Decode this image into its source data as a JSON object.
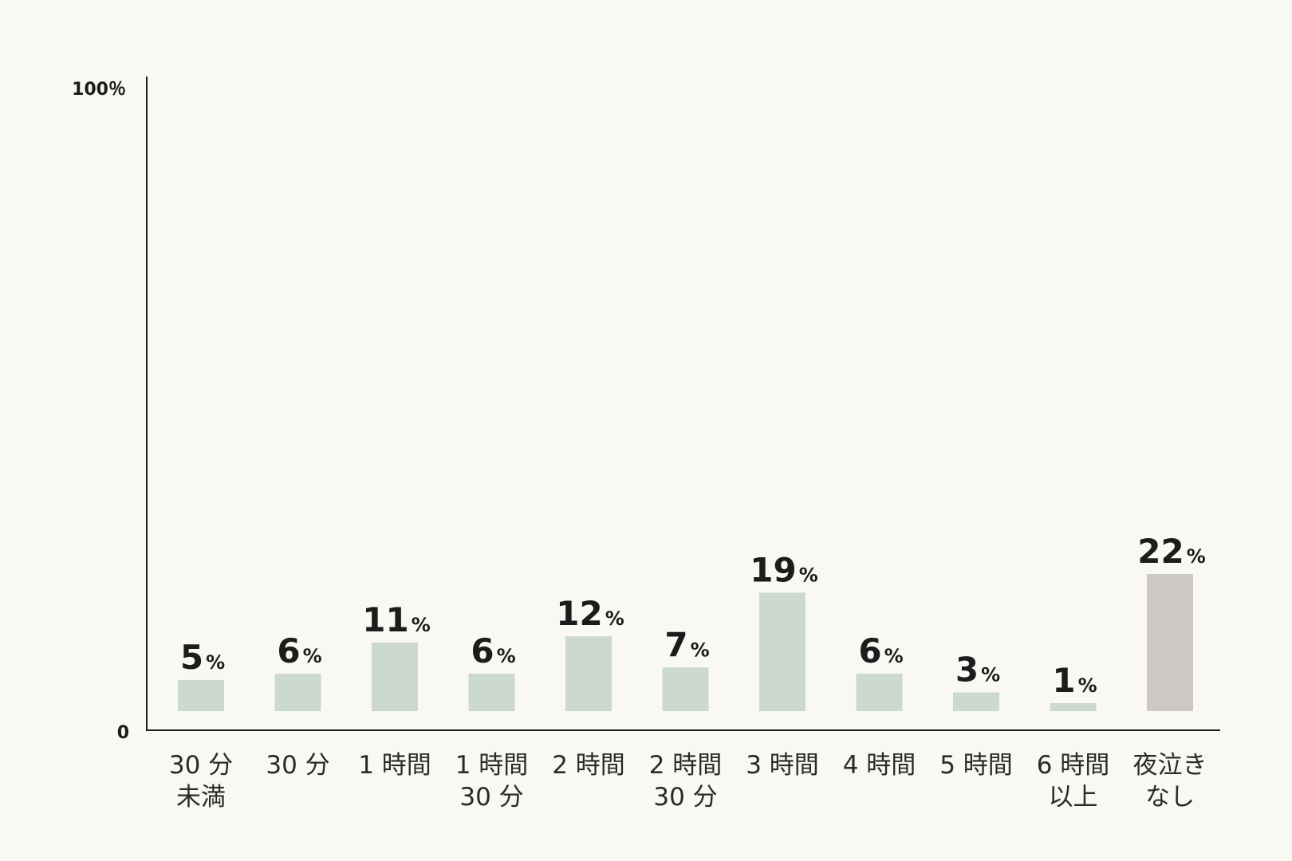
{
  "chart_data": {
    "type": "bar",
    "categories": [
      [
        "30 分",
        "未満"
      ],
      [
        "30 分"
      ],
      [
        "1 時間"
      ],
      [
        "1 時間",
        "30 分"
      ],
      [
        "2 時間"
      ],
      [
        "2 時間",
        "30 分"
      ],
      [
        "3 時間"
      ],
      [
        "4 時間"
      ],
      [
        "5 時間"
      ],
      [
        "6 時間",
        "以上"
      ],
      [
        "夜泣き",
        "なし"
      ]
    ],
    "values": [
      5,
      6,
      11,
      6,
      12,
      7,
      19,
      6,
      3,
      1,
      22
    ],
    "value_labels": [
      "5",
      "6",
      "11",
      "6",
      "12",
      "7",
      "19",
      "6",
      "3",
      "1",
      "22"
    ],
    "value_unit": "%",
    "ylim": [
      0,
      100
    ],
    "y_tick_labels": {
      "min": "0",
      "max": "100％"
    },
    "title": "",
    "xlabel": "",
    "ylabel": "",
    "grid": false,
    "legend": "none",
    "colors": {
      "default_bar": "#cbd9d0",
      "highlight_bar": "#cbc8c5",
      "axis": "#1c1c1c",
      "text": "#1c1c1c",
      "background": "#faf8f3"
    },
    "highlight_index": 10
  }
}
